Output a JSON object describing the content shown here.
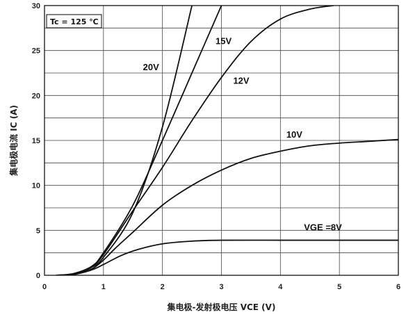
{
  "chart_data": {
    "type": "line",
    "xlabel": "集电极-发射极电压 VCE (V)",
    "ylabel": "集电极电流 IC (A)",
    "xlim": [
      0,
      6
    ],
    "ylim": [
      0,
      30
    ],
    "xticks": [
      "0",
      "1",
      "2",
      "3",
      "4",
      "5",
      "6"
    ],
    "yticks": [
      "0",
      "5",
      "10",
      "15",
      "20",
      "25",
      "30"
    ],
    "grid": true,
    "annotation": "Tc = 125 ℃",
    "series": [
      {
        "name": "VGE =8V",
        "points": [
          [
            0.2,
            0
          ],
          [
            0.5,
            0.1
          ],
          [
            0.8,
            0.6
          ],
          [
            1.0,
            1.2
          ],
          [
            1.3,
            2.2
          ],
          [
            1.6,
            2.9
          ],
          [
            2.0,
            3.5
          ],
          [
            2.5,
            3.8
          ],
          [
            3.0,
            3.9
          ],
          [
            4.0,
            3.9
          ],
          [
            5.0,
            3.9
          ],
          [
            6.0,
            3.9
          ]
        ]
      },
      {
        "name": "10V",
        "points": [
          [
            0.2,
            0
          ],
          [
            0.5,
            0.1
          ],
          [
            0.8,
            0.7
          ],
          [
            1.0,
            1.7
          ],
          [
            1.2,
            3.0
          ],
          [
            1.5,
            4.8
          ],
          [
            2.0,
            7.8
          ],
          [
            2.5,
            10.0
          ],
          [
            3.0,
            11.7
          ],
          [
            3.5,
            13.0
          ],
          [
            4.0,
            13.8
          ],
          [
            4.5,
            14.4
          ],
          [
            5.0,
            14.7
          ],
          [
            5.5,
            14.9
          ],
          [
            6.0,
            15.1
          ]
        ]
      },
      {
        "name": "12V",
        "points": [
          [
            0.2,
            0
          ],
          [
            0.5,
            0.15
          ],
          [
            0.8,
            0.9
          ],
          [
            1.0,
            2.3
          ],
          [
            1.5,
            7.2
          ],
          [
            2.0,
            12.0
          ],
          [
            2.5,
            17.2
          ],
          [
            3.0,
            22.0
          ],
          [
            3.5,
            26.0
          ],
          [
            4.0,
            28.5
          ],
          [
            4.5,
            29.6
          ],
          [
            4.9,
            30.0
          ]
        ]
      },
      {
        "name": "15V",
        "points": [
          [
            0.2,
            0
          ],
          [
            0.5,
            0.2
          ],
          [
            0.8,
            1.0
          ],
          [
            1.0,
            2.5
          ],
          [
            1.5,
            7.8
          ],
          [
            2.0,
            15.0
          ],
          [
            2.5,
            22.5
          ],
          [
            3.0,
            30.0
          ]
        ]
      },
      {
        "name": "20V",
        "points": [
          [
            0.2,
            0
          ],
          [
            0.5,
            0.15
          ],
          [
            0.8,
            0.9
          ],
          [
            1.0,
            2.0
          ],
          [
            1.5,
            7.0
          ],
          [
            2.0,
            16.5
          ],
          [
            2.5,
            30.0
          ]
        ]
      }
    ],
    "series_labels": [
      {
        "text": "20V",
        "x": 1.67,
        "y": 22.8
      },
      {
        "text": "15V",
        "x": 2.9,
        "y": 25.7
      },
      {
        "text": "12V",
        "x": 3.2,
        "y": 21.3
      },
      {
        "text": "10V",
        "x": 4.1,
        "y": 15.3
      },
      {
        "text": "VGE =8V",
        "x": 4.4,
        "y": 5.0
      }
    ]
  }
}
